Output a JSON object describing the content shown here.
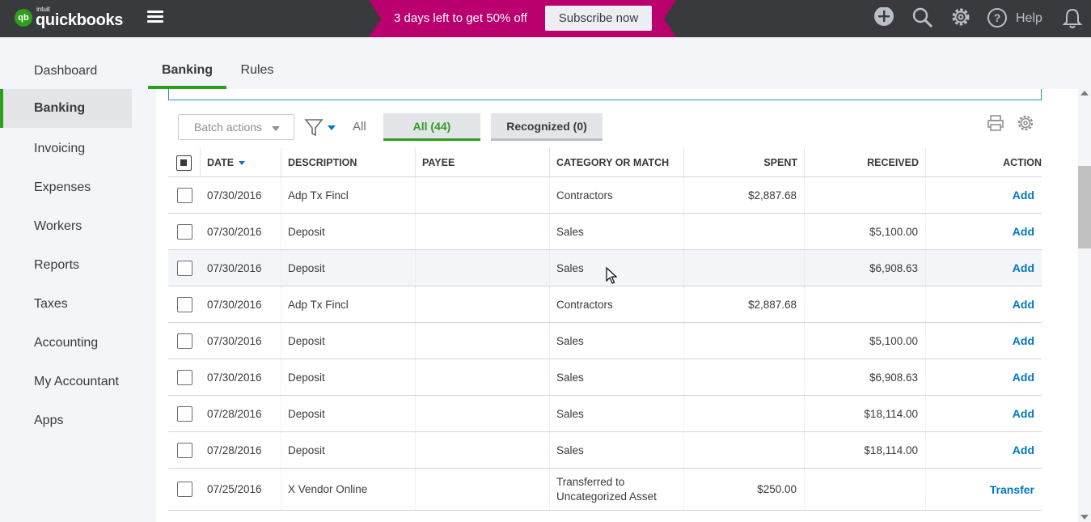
{
  "brand": {
    "small": "intuit",
    "name": "quickbooks",
    "mark": "qb"
  },
  "promo": {
    "text": "3 days left to get 50% off",
    "button": "Subscribe now"
  },
  "topbar": {
    "help_label": "Help"
  },
  "sidebar": {
    "items": [
      {
        "label": "Dashboard",
        "active": false
      },
      {
        "label": "Banking",
        "active": true
      },
      {
        "label": "Invoicing",
        "active": false
      },
      {
        "label": "Expenses",
        "active": false
      },
      {
        "label": "Workers",
        "active": false
      },
      {
        "label": "Reports",
        "active": false
      },
      {
        "label": "Taxes",
        "active": false
      },
      {
        "label": "Accounting",
        "active": false
      },
      {
        "label": "My Accountant",
        "active": false
      },
      {
        "label": "Apps",
        "active": false
      }
    ]
  },
  "tabs": [
    {
      "label": "Banking"
    },
    {
      "label": "Rules"
    }
  ],
  "toolbar": {
    "batch_actions": "Batch actions",
    "filter_all": "All",
    "segment_all": "All (44)",
    "segment_recognized": "Recognized (0)"
  },
  "table": {
    "headers": {
      "date": "DATE",
      "description": "DESCRIPTION",
      "payee": "PAYEE",
      "category": "CATEGORY OR MATCH",
      "spent": "SPENT",
      "received": "RECEIVED",
      "action": "ACTION"
    },
    "rows": [
      {
        "date": "07/30/2016",
        "description": "Adp Tx Fincl",
        "payee": "",
        "category": "Contractors",
        "category2": "",
        "spent": "$2,887.68",
        "received": "",
        "action": "Add"
      },
      {
        "date": "07/30/2016",
        "description": "Deposit",
        "payee": "",
        "category": "Sales",
        "category2": "",
        "spent": "",
        "received": "$5,100.00",
        "action": "Add"
      },
      {
        "date": "07/30/2016",
        "description": "Deposit",
        "payee": "",
        "category": "Sales",
        "category2": "",
        "spent": "",
        "received": "$6,908.63",
        "action": "Add"
      },
      {
        "date": "07/30/2016",
        "description": "Adp Tx Fincl",
        "payee": "",
        "category": "Contractors",
        "category2": "",
        "spent": "$2,887.68",
        "received": "",
        "action": "Add"
      },
      {
        "date": "07/30/2016",
        "description": "Deposit",
        "payee": "",
        "category": "Sales",
        "category2": "",
        "spent": "",
        "received": "$5,100.00",
        "action": "Add"
      },
      {
        "date": "07/30/2016",
        "description": "Deposit",
        "payee": "",
        "category": "Sales",
        "category2": "",
        "spent": "",
        "received": "$6,908.63",
        "action": "Add"
      },
      {
        "date": "07/28/2016",
        "description": "Deposit",
        "payee": "",
        "category": "Sales",
        "category2": "",
        "spent": "",
        "received": "$18,114.00",
        "action": "Add"
      },
      {
        "date": "07/28/2016",
        "description": "Deposit",
        "payee": "",
        "category": "Sales",
        "category2": "",
        "spent": "",
        "received": "$18,114.00",
        "action": "Add"
      },
      {
        "date": "07/25/2016",
        "description": "X Vendor Online",
        "payee": "",
        "category": "Transferred to",
        "category2": "Uncategorized Asset",
        "spent": "$250.00",
        "received": "",
        "action": "Transfer"
      }
    ]
  },
  "colors": {
    "accent": "#2ca01c",
    "link": "#0077c5",
    "promo": "#b9006e",
    "topbar": "#393a3d"
  }
}
